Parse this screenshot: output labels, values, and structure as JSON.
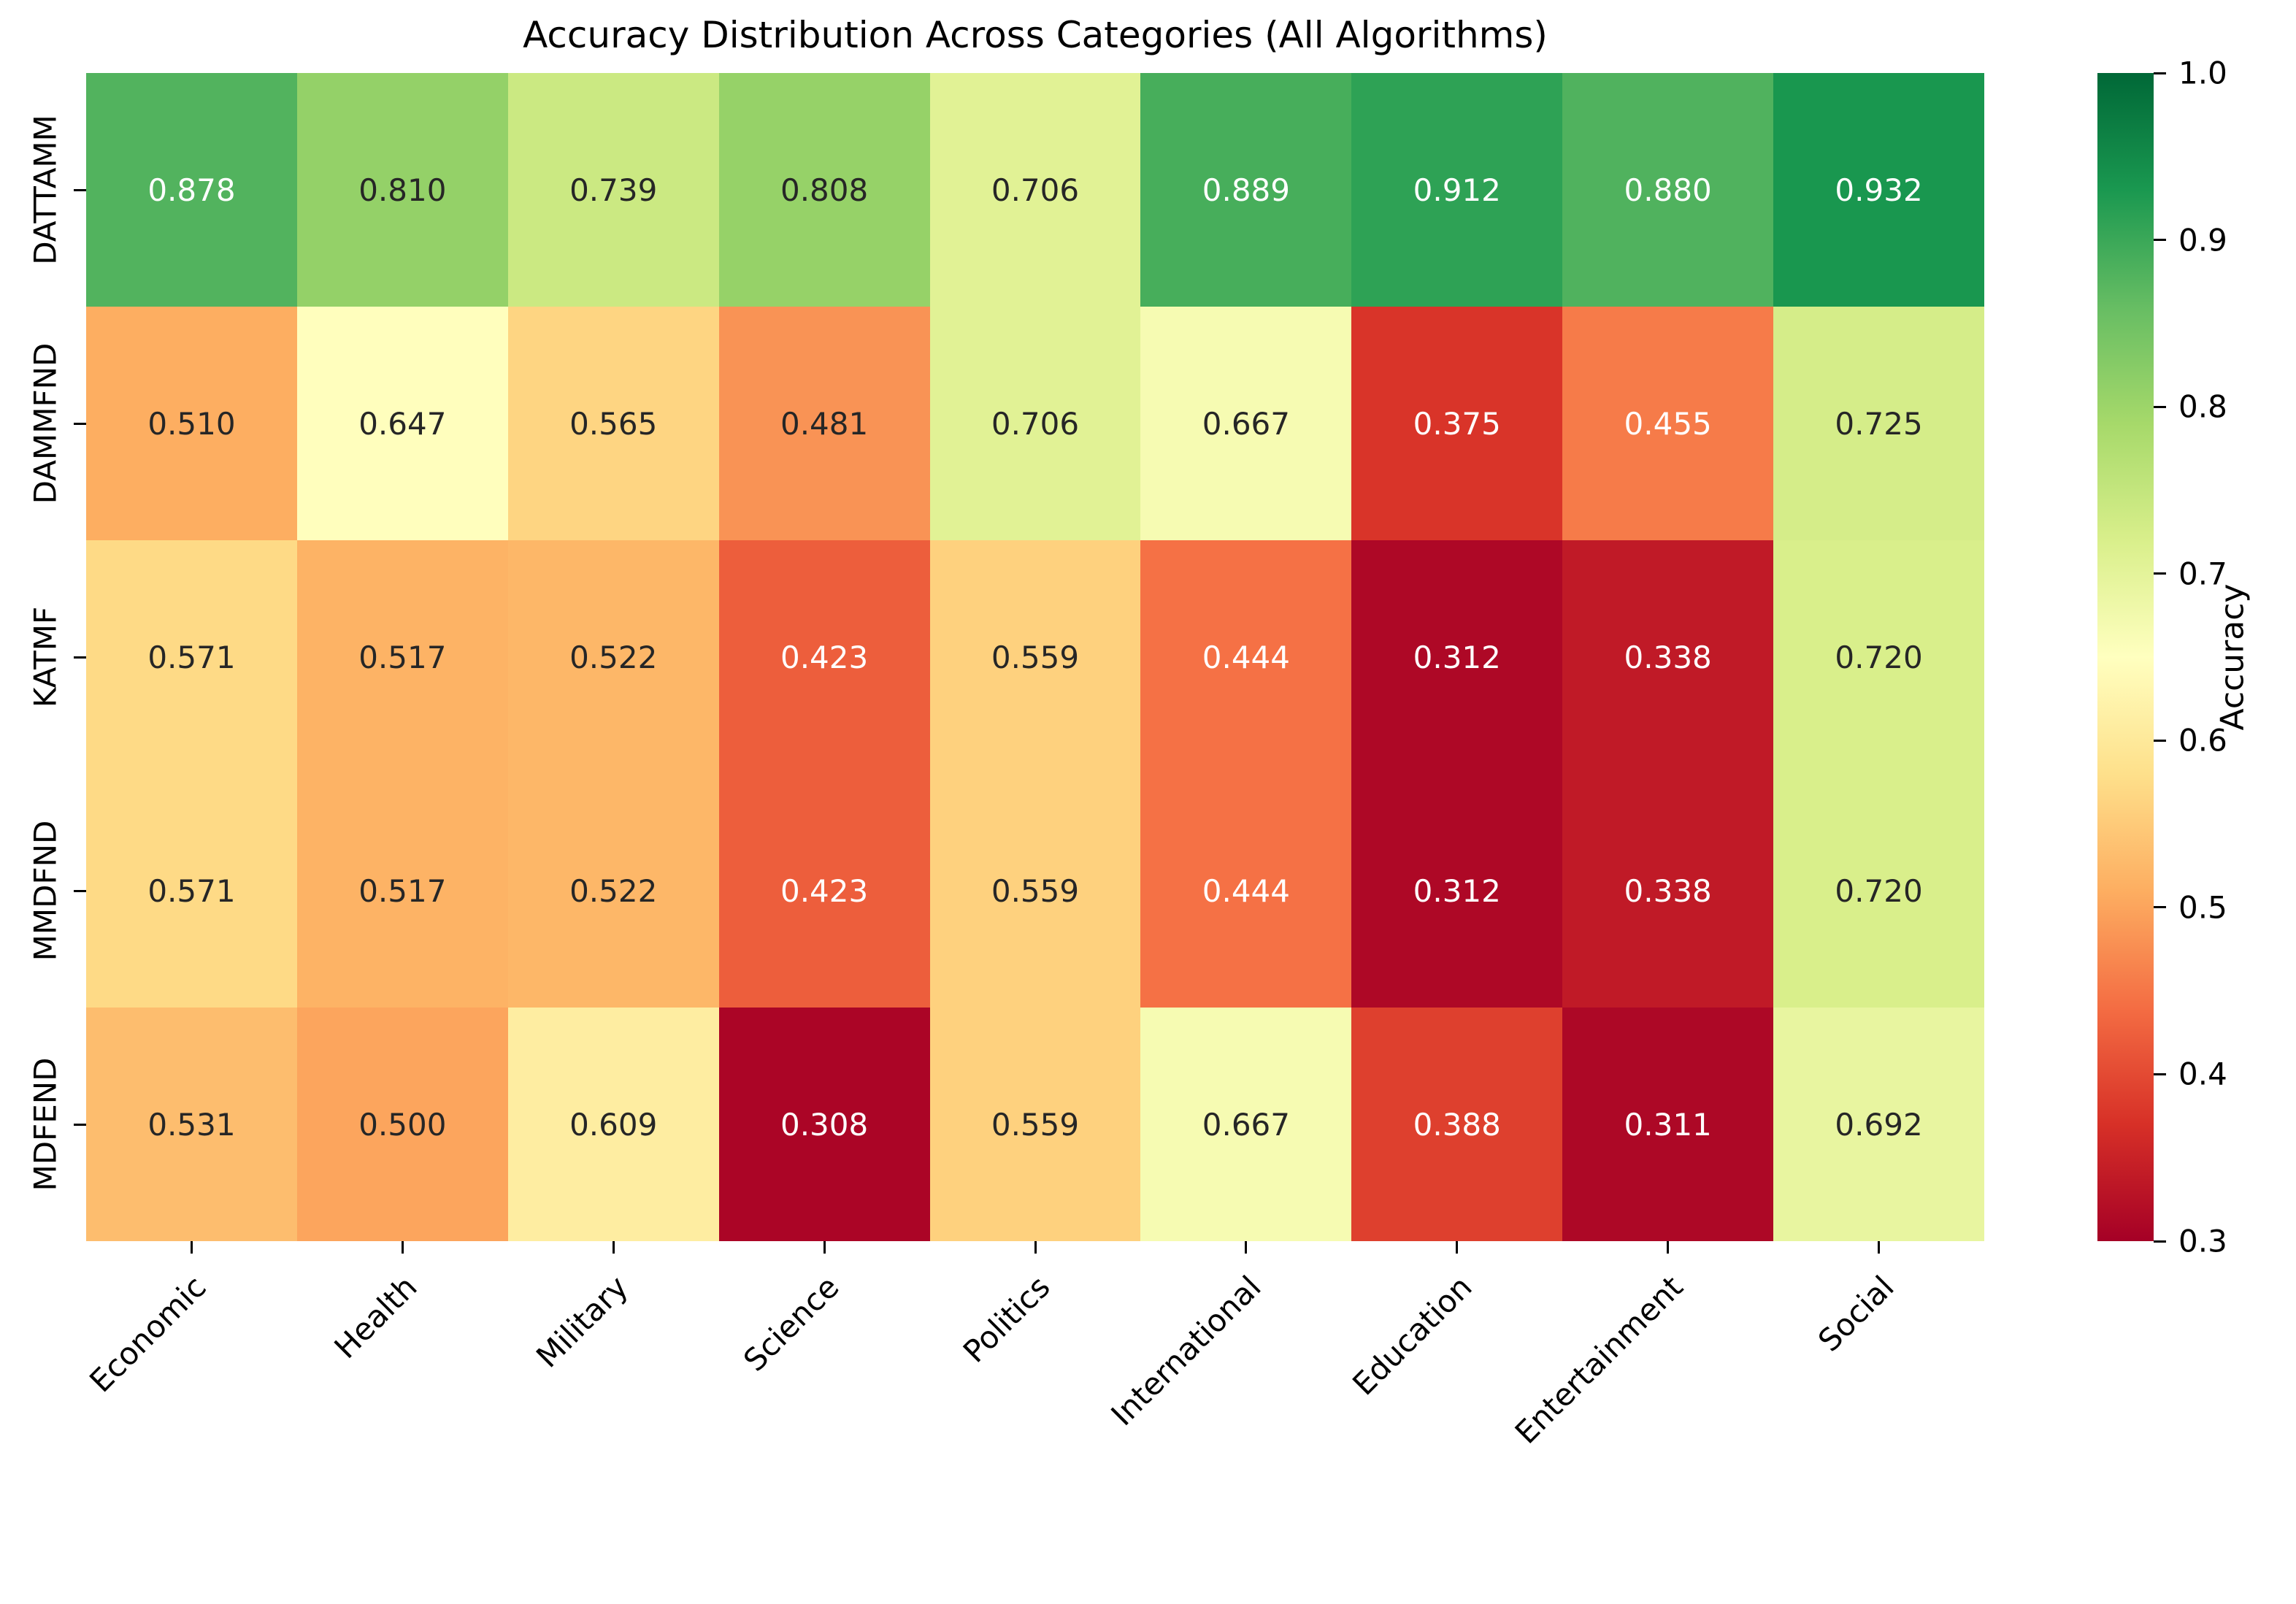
{
  "chart_data": {
    "type": "heatmap",
    "title": "Accuracy Distribution Across Categories (All Algorithms)",
    "rows": [
      "DATTAMM",
      "DAMMFND",
      "KATMF",
      "MMDFND",
      "MDFEND"
    ],
    "columns": [
      "Economic",
      "Health",
      "Military",
      "Science",
      "Politics",
      "International",
      "Education",
      "Entertainment",
      "Social"
    ],
    "values": [
      [
        0.878,
        0.81,
        0.739,
        0.808,
        0.706,
        0.889,
        0.912,
        0.88,
        0.932
      ],
      [
        0.51,
        0.647,
        0.565,
        0.481,
        0.706,
        0.667,
        0.375,
        0.455,
        0.725
      ],
      [
        0.571,
        0.517,
        0.522,
        0.423,
        0.559,
        0.444,
        0.312,
        0.338,
        0.72
      ],
      [
        0.571,
        0.517,
        0.522,
        0.423,
        0.559,
        0.444,
        0.312,
        0.338,
        0.72
      ],
      [
        0.531,
        0.5,
        0.609,
        0.308,
        0.559,
        0.667,
        0.388,
        0.311,
        0.692
      ]
    ],
    "value_decimals": 3,
    "colorbar": {
      "label": "Accuracy",
      "ticks": [
        1.0,
        0.9,
        0.8,
        0.7,
        0.6,
        0.5,
        0.4,
        0.3
      ],
      "vmin": 0.3,
      "vmax": 1.0
    },
    "colormap": {
      "name": "RdYlGn",
      "stops": [
        "#a50026",
        "#d73027",
        "#f46d43",
        "#fdae61",
        "#fee08b",
        "#ffffbf",
        "#d9ef8b",
        "#a6d96a",
        "#66bd63",
        "#1a9850",
        "#006837"
      ]
    },
    "annotation_colors": {
      "dark_text": "#262626",
      "light_text": "#ffffff"
    }
  }
}
